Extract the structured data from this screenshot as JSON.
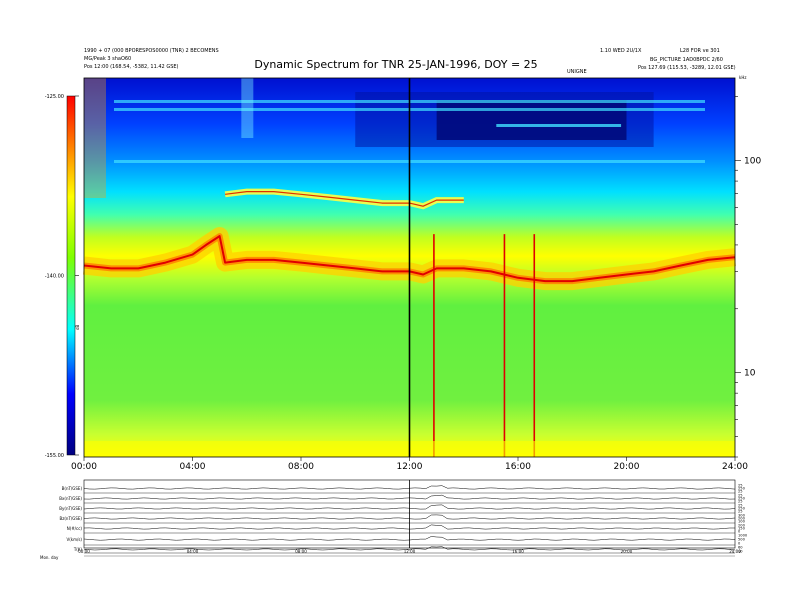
{
  "header": {
    "title": "Dynamic Spectrum for TNR 25-JAN-1996, DOY = 25",
    "left_info": [
      "1990 + 07 (000 BPORESPOS0000 (TNR) 2 BECOMENS",
      "MG/Peak 3 shaO60",
      "Pos 12:00 (168.54, -5382, 11.42 GSE)"
    ],
    "right_info": [
      "1.10 WED 2U/1X",
      "L28 FOR ve 301",
      "BG_PICTURE 1AD0BPDC 2/60",
      "Pos 127.69 (115.53, -3289, 12.01 GSE)"
    ],
    "center_small": "UNIGNE"
  },
  "chart_data": {
    "type": "heatmap",
    "title": "Dynamic Spectrum for TNR 25-JAN-1996, DOY = 25",
    "x": {
      "min": 0,
      "max": 24,
      "ticks": [
        0,
        4,
        8,
        12,
        16,
        20,
        24
      ],
      "tick_labels": [
        "00:00",
        "04:00",
        "08:00",
        "12:00",
        "16:00",
        "20:00",
        "24:00"
      ]
    },
    "y_right": {
      "scale": "log",
      "unit": "kHz",
      "range": [
        4,
        245
      ],
      "ticks": [
        10,
        100
      ],
      "tick_labels": [
        "10",
        "100"
      ]
    },
    "colorbar": {
      "label": "dB",
      "range": [
        -155,
        -125
      ],
      "ticks": [
        -125,
        -140,
        -155
      ],
      "tick_labels": [
        "-125.00",
        "-140.00",
        "-155.00"
      ],
      "colors": [
        "#000080",
        "#0000ff",
        "#00ffff",
        "#7fff00",
        "#ffff00",
        "#ff8000",
        "#ff0000"
      ]
    },
    "marker_time": 12.0,
    "plasma_line": {
      "times": [
        0,
        1,
        2,
        3,
        4,
        4.5,
        5,
        5.2,
        6,
        7,
        8,
        9,
        10,
        11,
        12,
        12.5,
        13,
        14,
        15,
        16,
        17,
        18,
        19,
        20,
        21,
        22,
        23,
        24
      ],
      "freq_khz": [
        32,
        31,
        31,
        33,
        36,
        40,
        44,
        33,
        34,
        34,
        33,
        32,
        31,
        30,
        30,
        29,
        31,
        31,
        30,
        28,
        27,
        27,
        28,
        29,
        30,
        32,
        34,
        35
      ]
    },
    "panels": [
      {
        "label": "B(nT/GSE)",
        "values": [
          25,
          250,
          25
        ]
      },
      {
        "label": "Bx(nT/GSE)",
        "values": [
          25,
          250,
          25
        ]
      },
      {
        "label": "By(nT/GSE)",
        "values": [
          25,
          250,
          25
        ]
      },
      {
        "label": "Bz(nT/GSE)",
        "values": [
          300,
          200,
          100
        ]
      },
      {
        "label": "N(#/cc)",
        "values": [
          200,
          150,
          0
        ]
      },
      {
        "label": "V(km/s)",
        "values": [
          1000,
          500,
          0
        ]
      },
      {
        "label": "T(K)",
        "values": [
          60,
          10
        ]
      }
    ],
    "bottom_axis": {
      "tick_labels": [
        "00:00",
        "04:00",
        "08:00",
        "12:00",
        "16:00",
        "20:00",
        "24:00"
      ],
      "extra_label": "Mon. day"
    }
  }
}
